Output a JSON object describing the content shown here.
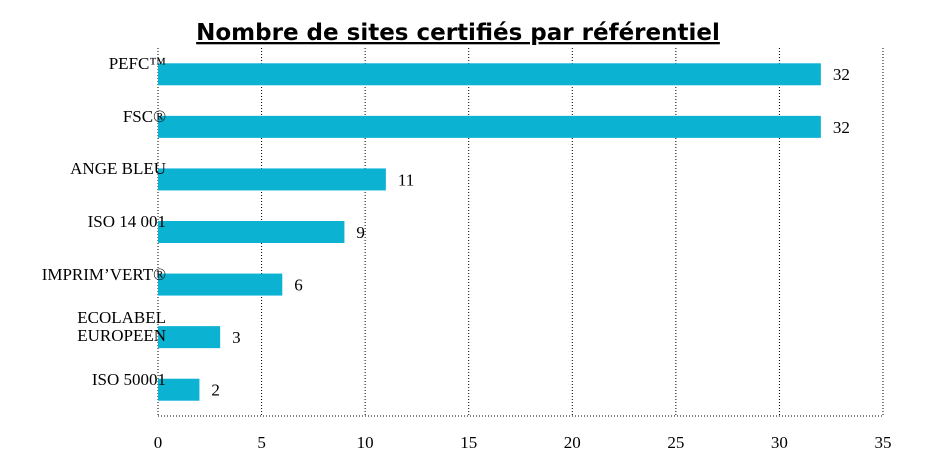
{
  "chart_data": {
    "type": "bar",
    "orientation": "horizontal",
    "title": "Nombre de sites certifiés par référentiel",
    "categories": [
      "PEFC™",
      "FSC®",
      "ANGE BLEU",
      "ISO 14 001",
      "IMPRIM’VERT®",
      "ECOLABEL EUROPEEN",
      "ISO 50001"
    ],
    "values": [
      32,
      32,
      11,
      9,
      6,
      3,
      2
    ],
    "color": "#0cb2d2",
    "xlim": [
      0,
      35
    ],
    "xticks": [
      0,
      5,
      10,
      15,
      20,
      25,
      30,
      35
    ],
    "grid": true
  }
}
